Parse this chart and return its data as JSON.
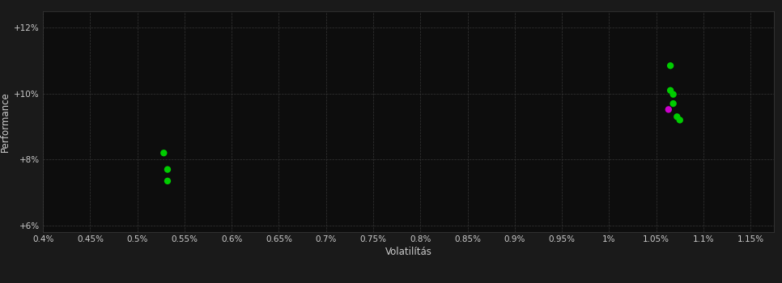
{
  "background_color": "#1a1a1a",
  "plot_bg_color": "#0d0d0d",
  "grid_color": "#3a3a3a",
  "text_color": "#cccccc",
  "xlabel": "Volatilítás",
  "ylabel": "Performance",
  "xlim": [
    0.004,
    0.01175
  ],
  "ylim": [
    0.058,
    0.125
  ],
  "xticks": [
    0.004,
    0.0045,
    0.005,
    0.0055,
    0.006,
    0.0065,
    0.007,
    0.0075,
    0.008,
    0.0085,
    0.009,
    0.0095,
    0.01,
    0.0105,
    0.011,
    0.0115
  ],
  "xtick_labels": [
    "0.4%",
    "0.45%",
    "0.5%",
    "0.55%",
    "0.6%",
    "0.65%",
    "0.7%",
    "0.75%",
    "0.8%",
    "0.85%",
    "0.9%",
    "0.95%",
    "1%",
    "1.05%",
    "1.1%",
    "1.15%"
  ],
  "yticks": [
    0.06,
    0.08,
    0.1,
    0.12
  ],
  "ytick_labels": [
    "+6%",
    "+8%",
    "+10%",
    "+12%"
  ],
  "green_points": [
    [
      0.00528,
      0.082
    ],
    [
      0.00532,
      0.077
    ],
    [
      0.00532,
      0.0735
    ],
    [
      0.01065,
      0.1085
    ],
    [
      0.01065,
      0.101
    ],
    [
      0.01068,
      0.0998
    ],
    [
      0.01068,
      0.097
    ],
    [
      0.01072,
      0.093
    ],
    [
      0.01075,
      0.092
    ]
  ],
  "magenta_points": [
    [
      0.01063,
      0.0952
    ]
  ],
  "green_color": "#00cc00",
  "magenta_color": "#cc00cc",
  "marker_size": 36
}
